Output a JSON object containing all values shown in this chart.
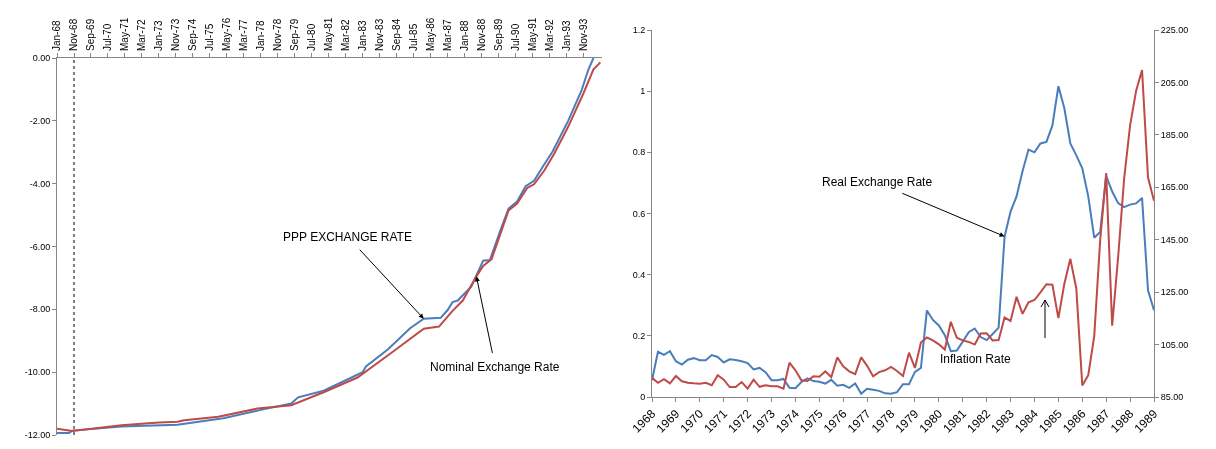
{
  "chart_data": [
    {
      "type": "line",
      "xlim": [
        "1968-01",
        "1994-10"
      ],
      "ylim": [
        -12,
        0
      ],
      "xticks": [
        {
          "value": "1968-01",
          "label": "Jan-68"
        },
        {
          "value": "1968-11",
          "label": "Nov-68"
        },
        {
          "value": "1969-09",
          "label": "Sep-69"
        },
        {
          "value": "1970-07",
          "label": "Jul-70"
        },
        {
          "value": "1971-05",
          "label": "May-71"
        },
        {
          "value": "1972-03",
          "label": "Mar-72"
        },
        {
          "value": "1973-01",
          "label": "Jan-73"
        },
        {
          "value": "1973-11",
          "label": "Nov-73"
        },
        {
          "value": "1974-09",
          "label": "Sep-74"
        },
        {
          "value": "1975-07",
          "label": "Jul-75"
        },
        {
          "value": "1976-05",
          "label": "May-76"
        },
        {
          "value": "1977-03",
          "label": "Mar-77"
        },
        {
          "value": "1978-01",
          "label": "Jan-78"
        },
        {
          "value": "1978-11",
          "label": "Nov-78"
        },
        {
          "value": "1979-09",
          "label": "Sep-79"
        },
        {
          "value": "1980-07",
          "label": "Jul-80"
        },
        {
          "value": "1981-05",
          "label": "May-81"
        },
        {
          "value": "1982-03",
          "label": "Mar-82"
        },
        {
          "value": "1983-01",
          "label": "Jan-83"
        },
        {
          "value": "1983-11",
          "label": "Nov-83"
        },
        {
          "value": "1984-09",
          "label": "Sep-84"
        },
        {
          "value": "1985-07",
          "label": "Jul-85"
        },
        {
          "value": "1986-05",
          "label": "May-86"
        },
        {
          "value": "1987-03",
          "label": "Mar-87"
        },
        {
          "value": "1988-01",
          "label": "Jan-88"
        },
        {
          "value": "1988-11",
          "label": "Nov-88"
        },
        {
          "value": "1989-09",
          "label": "Sep-89"
        },
        {
          "value": "1990-07",
          "label": "Jul-90"
        },
        {
          "value": "1991-05",
          "label": "May-91"
        },
        {
          "value": "1992-03",
          "label": "Mar-92"
        },
        {
          "value": "1993-01",
          "label": "Jan-93"
        },
        {
          "value": "1993-11",
          "label": "Nov-93"
        }
      ],
      "yticks": [
        {
          "value": 0,
          "label": "0.00"
        },
        {
          "value": -2,
          "label": "-2.00"
        },
        {
          "value": -4,
          "label": "-4.00"
        },
        {
          "value": -6,
          "label": "-6.00"
        },
        {
          "value": -8,
          "label": "-8.00"
        },
        {
          "value": -10,
          "label": "-10.00"
        },
        {
          "value": -12,
          "label": "-12.00"
        }
      ],
      "series": [
        {
          "color": "#4a7ebb",
          "x": [
            "1968-01",
            "1968-08",
            "1968-10",
            "1971-03",
            "1973-12",
            "1976-03",
            "1978-01",
            "1979-07",
            "1979-11",
            "1981-02",
            "1983-01",
            "1983-03",
            "1984-04",
            "1985-05",
            "1986-01",
            "1986-11",
            "1987-03",
            "1987-06",
            "1987-09",
            "1988-05",
            "1988-12",
            "1989-04",
            "1989-10",
            "1990-03",
            "1990-08",
            "1991-01",
            "1991-06",
            "1991-11",
            "1992-05",
            "1993-02",
            "1993-10",
            "1994-02",
            "1994-05"
          ],
          "values": [
            -11.94,
            -11.94,
            -11.86,
            -11.73,
            -11.67,
            -11.47,
            -11.2,
            -11.0,
            -10.8,
            -10.59,
            -10.0,
            -9.82,
            -9.27,
            -8.6,
            -8.3,
            -8.27,
            -8.03,
            -7.77,
            -7.72,
            -7.28,
            -6.45,
            -6.43,
            -5.51,
            -4.79,
            -4.57,
            -4.08,
            -3.91,
            -3.47,
            -2.97,
            -2.0,
            -1.02,
            -0.36,
            0.0
          ]
        },
        {
          "color": "#be4b48",
          "x": [
            "1968-01",
            "1968-10",
            "1971-03",
            "1973-01",
            "1973-12",
            "1974-04",
            "1975-12",
            "1977-11",
            "1979-07",
            "1981-02",
            "1982-10",
            "1984-06",
            "1986-01",
            "1986-10",
            "1987-06",
            "1987-12",
            "1988-08",
            "1988-12",
            "1989-05",
            "1989-10",
            "1990-03",
            "1990-08",
            "1991-02",
            "1991-06",
            "1991-12",
            "1992-06",
            "1993-02",
            "1993-11",
            "1994-05",
            "1994-09"
          ],
          "values": [
            -11.8,
            -11.87,
            -11.69,
            -11.6,
            -11.58,
            -11.53,
            -11.42,
            -11.16,
            -11.05,
            -10.64,
            -10.17,
            -9.38,
            -8.62,
            -8.55,
            -8.05,
            -7.72,
            -6.95,
            -6.62,
            -6.4,
            -5.62,
            -4.85,
            -4.63,
            -4.13,
            -4.02,
            -3.58,
            -3.03,
            -2.19,
            -1.13,
            -0.36,
            -0.14
          ]
        }
      ],
      "ref_lines": [
        {
          "axis": "x",
          "value": "1968-11",
          "line_style": "dotted",
          "color": "#000000"
        }
      ],
      "annotations": [
        {
          "text": "PPP EXCHANGE RATE",
          "x": "1986-01",
          "y": -8.3
        },
        {
          "text": "Nominal Exchange Rate",
          "x": "1988-08",
          "y": -6.95
        }
      ]
    },
    {
      "type": "line",
      "xlim": [
        1968,
        1989
      ],
      "ylim": [
        0,
        1.2
      ],
      "y2lim": [
        85,
        225
      ],
      "xticks": [
        1968,
        1969,
        1970,
        1971,
        1972,
        1973,
        1974,
        1975,
        1976,
        1977,
        1978,
        1979,
        1980,
        1981,
        1982,
        1983,
        1984,
        1985,
        1986,
        1987,
        1988,
        1989
      ],
      "yticks": [
        0,
        0.2,
        0.4,
        0.6,
        0.8,
        1,
        1.2
      ],
      "y2ticks": [
        {
          "value": 85,
          "label": "85.00"
        },
        {
          "value": 105,
          "label": "105.00"
        },
        {
          "value": 125,
          "label": "125.00"
        },
        {
          "value": 145,
          "label": "145.00"
        },
        {
          "value": 165,
          "label": "165.00"
        },
        {
          "value": 185,
          "label": "185.00"
        },
        {
          "value": 205,
          "label": "205.00"
        },
        {
          "value": 225,
          "label": "225.00"
        }
      ],
      "x": [
        1968,
        1968.25,
        1968.5,
        1968.75,
        1969,
        1969.25,
        1969.5,
        1969.75,
        1970,
        1970.25,
        1970.5,
        1970.75,
        1971,
        1971.25,
        1971.5,
        1971.75,
        1972,
        1972.25,
        1972.5,
        1972.75,
        1973,
        1973.25,
        1973.5,
        1973.75,
        1974,
        1974.25,
        1974.5,
        1974.75,
        1975,
        1975.25,
        1975.5,
        1975.75,
        1976,
        1976.25,
        1976.5,
        1976.75,
        1977,
        1977.25,
        1977.5,
        1977.75,
        1978,
        1978.25,
        1978.5,
        1978.75,
        1979,
        1979.25,
        1979.5,
        1979.75,
        1980,
        1980.25,
        1980.5,
        1980.75,
        1981,
        1981.25,
        1981.5,
        1981.75,
        1982,
        1982.25,
        1982.5,
        1982.75,
        1983,
        1983.25,
        1983.5,
        1983.75,
        1984,
        1984.25,
        1984.5,
        1984.75,
        1985,
        1985.25,
        1985.5,
        1985.75,
        1986,
        1986.25,
        1986.5,
        1986.75,
        1987,
        1987.25,
        1987.5,
        1987.75,
        1988,
        1988.25,
        1988.5,
        1988.75,
        1989
      ],
      "series": [
        {
          "color": "#4a7ebb",
          "values": [
            0.055,
            0.148,
            0.138,
            0.15,
            0.117,
            0.106,
            0.122,
            0.127,
            0.12,
            0.12,
            0.137,
            0.131,
            0.113,
            0.123,
            0.121,
            0.117,
            0.111,
            0.09,
            0.095,
            0.081,
            0.055,
            0.055,
            0.059,
            0.03,
            0.029,
            0.049,
            0.061,
            0.052,
            0.05,
            0.044,
            0.056,
            0.037,
            0.04,
            0.03,
            0.044,
            0.011,
            0.027,
            0.024,
            0.02,
            0.012,
            0.011,
            0.016,
            0.042,
            0.042,
            0.082,
            0.095,
            0.283,
            0.252,
            0.234,
            0.202,
            0.15,
            0.152,
            0.181,
            0.212,
            0.224,
            0.196,
            0.186,
            0.206,
            0.227,
            0.525,
            0.606,
            0.656,
            0.738,
            0.809,
            0.8,
            0.829,
            0.834,
            0.888,
            1.016,
            0.944,
            0.829,
            0.79,
            0.748,
            0.656,
            0.521,
            0.54,
            0.722,
            0.672,
            0.634,
            0.621,
            0.629,
            0.633,
            0.651,
            0.349,
            0.284
          ]
        },
        {
          "color": "#be4b48",
          "axis": "y2",
          "values": [
            92.3,
            90.4,
            91.8,
            90.2,
            93.0,
            91.0,
            90.4,
            90.2,
            90.1,
            90.4,
            89.5,
            93.3,
            91.6,
            88.8,
            88.8,
            90.7,
            88.2,
            91.6,
            88.9,
            89.5,
            89.1,
            89.1,
            88.2,
            98.1,
            95.2,
            91.4,
            91.1,
            92.9,
            92.7,
            94.8,
            92.6,
            100.1,
            96.7,
            94.8,
            93.7,
            100.1,
            96.9,
            92.9,
            94.5,
            95.2,
            96.5,
            94.9,
            93.0,
            101.9,
            96.1,
            105.8,
            107.7,
            106.6,
            105.1,
            103.1,
            113.7,
            107.6,
            106.6,
            106.0,
            105.0,
            109.2,
            109.3,
            106.6,
            106.7,
            115.3,
            114.0,
            123.2,
            116.7,
            121.1,
            122.0,
            124.9,
            128.0,
            127.8,
            115.1,
            128.2,
            137.7,
            126.4,
            89.4,
            93.3,
            108.2,
            145,
            170.4,
            112.2,
            138.4,
            168.2,
            188.6,
            201.7,
            209.7,
            168.7,
            159.9
          ]
        }
      ],
      "annotations": [
        {
          "text": "Real Exchange Rate",
          "x": 1982.75,
          "y": 0.525
        },
        "Inflation Rate"
      ]
    }
  ]
}
